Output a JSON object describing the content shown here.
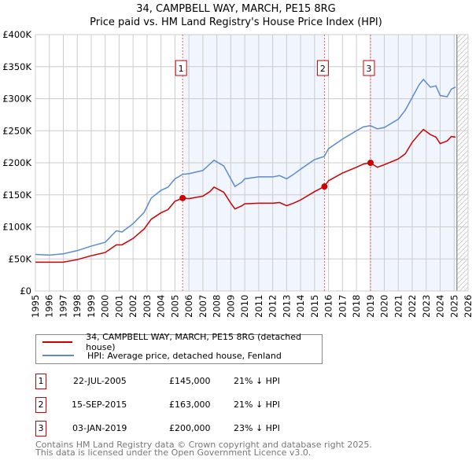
{
  "title": "34, CAMPBELL WAY, MARCH, PE15 8RG",
  "subtitle": "Price paid vs. HM Land Registry's House Price Index (HPI)",
  "chart_data": {
    "type": "line",
    "title": "34, CAMPBELL WAY, MARCH, PE15 8RG — Price paid vs. HM Land Registry's House Price Index (HPI)",
    "xlim": [
      1995,
      2026
    ],
    "ylim": [
      0,
      400000
    ],
    "x_ticks": [
      "1995",
      "1996",
      "1997",
      "1998",
      "1999",
      "2000",
      "2001",
      "2002",
      "2003",
      "2004",
      "2005",
      "2006",
      "2007",
      "2008",
      "2009",
      "2010",
      "2011",
      "2012",
      "2013",
      "2014",
      "2015",
      "2016",
      "2017",
      "2018",
      "2019",
      "2020",
      "2021",
      "2022",
      "2023",
      "2024",
      "2025",
      "2026"
    ],
    "y_ticks": [
      {
        "v": 0,
        "label": "£0"
      },
      {
        "v": 50000,
        "label": "£50K"
      },
      {
        "v": 100000,
        "label": "£100K"
      },
      {
        "v": 150000,
        "label": "£150K"
      },
      {
        "v": 200000,
        "label": "£200K"
      },
      {
        "v": 250000,
        "label": "£250K"
      },
      {
        "v": 300000,
        "label": "£300K"
      },
      {
        "v": 350000,
        "label": "£350K"
      },
      {
        "v": 400000,
        "label": "£400K"
      }
    ],
    "series": [
      {
        "name": "34, CAMPBELL WAY, MARCH, PE15 8RG (detached house)",
        "color": "#cc0000",
        "x": [
          1995,
          1996,
          1997,
          1998,
          1999,
          2000,
          2000.8,
          2001.2,
          2002,
          2002.8,
          2003.3,
          2004,
          2004.5,
          2005,
          2005.55,
          2006,
          2007,
          2007.5,
          2007.8,
          2008.5,
          2009,
          2009.3,
          2009.8,
          2010,
          2011,
          2012,
          2012.5,
          2013,
          2013.5,
          2014,
          2015,
          2015.7,
          2016,
          2017,
          2018,
          2018.5,
          2019,
          2019.5,
          2020,
          2021,
          2021.5,
          2022,
          2022.5,
          2022.8,
          2023.3,
          2023.7,
          2024,
          2024.5,
          2024.8,
          2025.1
        ],
        "y": [
          45000,
          45000,
          45000,
          49000,
          55000,
          60000,
          72000,
          72000,
          82000,
          97000,
          112000,
          122000,
          127000,
          140000,
          145000,
          144000,
          148000,
          155000,
          162000,
          154000,
          137000,
          128000,
          133000,
          136000,
          137000,
          137000,
          138000,
          133000,
          137000,
          142000,
          155000,
          163000,
          172000,
          184000,
          193000,
          198000,
          200000,
          193000,
          197000,
          206000,
          214000,
          232000,
          245000,
          252000,
          244000,
          240000,
          230000,
          234000,
          241000,
          240000
        ]
      },
      {
        "name": "HPI: Average price, detached house, Fenland",
        "color": "#5b8bd0",
        "x": [
          1995,
          1996,
          1997,
          1998,
          1999,
          2000,
          2000.8,
          2001.2,
          2002,
          2002.8,
          2003.3,
          2004,
          2004.5,
          2005,
          2005.55,
          2006,
          2007,
          2007.5,
          2007.8,
          2008.5,
          2009,
          2009.3,
          2009.8,
          2010,
          2011,
          2012,
          2012.5,
          2013,
          2013.5,
          2014,
          2015,
          2015.7,
          2016,
          2017,
          2018,
          2018.5,
          2019,
          2019.5,
          2020,
          2021,
          2021.5,
          2022,
          2022.5,
          2022.8,
          2023.3,
          2023.7,
          2024,
          2024.5,
          2024.8,
          2025.1
        ],
        "y": [
          57000,
          56000,
          58000,
          63000,
          70000,
          76000,
          94000,
          92000,
          105000,
          123000,
          145000,
          157000,
          162000,
          175000,
          182000,
          183000,
          188000,
          198000,
          204000,
          195000,
          175000,
          163000,
          170000,
          175000,
          178000,
          178000,
          180000,
          175000,
          182000,
          190000,
          205000,
          210000,
          222000,
          237000,
          250000,
          256000,
          258000,
          253000,
          255000,
          268000,
          282000,
          302000,
          322000,
          330000,
          318000,
          320000,
          305000,
          303000,
          315000,
          318000
        ]
      }
    ],
    "sales": [
      {
        "n": "1",
        "x": 2005.55,
        "y": 145000,
        "date": "22-JUL-2005",
        "price": "£145,000",
        "hpi": "21% ↓ HPI"
      },
      {
        "n": "2",
        "x": 2015.71,
        "y": 163000,
        "date": "15-SEP-2015",
        "price": "£163,000",
        "hpi": "21% ↓ HPI"
      },
      {
        "n": "3",
        "x": 2019.01,
        "y": 200000,
        "date": "03-JAN-2019",
        "price": "£200,000",
        "hpi": "23% ↓ HPI"
      }
    ],
    "data_end": 2025.2
  },
  "footer1": "Contains HM Land Registry data © Crown copyright and database right 2025.",
  "footer2": "This data is licensed under the Open Government Licence v3.0."
}
